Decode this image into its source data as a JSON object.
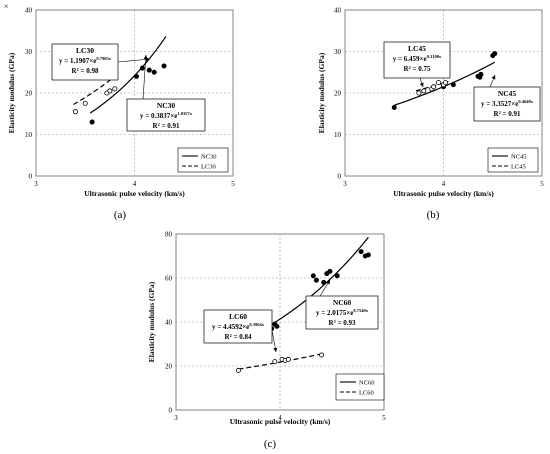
{
  "corner_mark": "×",
  "chart_data": [
    {
      "type": "scatter",
      "panel_label": "(a)",
      "xlabel": "Ultrasonic pulse velocity (km/s)",
      "ylabel": "Elasticity modulus (GPa)",
      "xlim": [
        3,
        5
      ],
      "ylim": [
        0,
        40
      ],
      "xticks": [
        3,
        4,
        5
      ],
      "yticks": [
        0,
        10,
        20,
        30,
        40
      ],
      "grid": "dashed",
      "legend_position": "bottom-right",
      "series": [
        {
          "name": "NC30",
          "marker": "filled-circle",
          "line": "solid",
          "points": [
            [
              3.57,
              13.0
            ],
            [
              4.02,
              24.0
            ],
            [
              4.08,
              26.0
            ],
            [
              4.15,
              25.5
            ],
            [
              4.2,
              25.0
            ],
            [
              4.3,
              26.5
            ]
          ],
          "fit": {
            "a": 0.3837,
            "b": 1.0357,
            "x_range": [
              3.55,
              4.32
            ]
          },
          "annotation": {
            "equation": "y = 0.3837×e",
            "exponent": "1.0357x",
            "r2": "R² = 0.91",
            "title": "NC30"
          }
        },
        {
          "name": "LC30",
          "marker": "open-circle",
          "line": "dashed",
          "points": [
            [
              3.4,
              15.5
            ],
            [
              3.5,
              17.5
            ],
            [
              3.72,
              20.0
            ],
            [
              3.75,
              20.5
            ],
            [
              3.8,
              21.0
            ]
          ],
          "fit": {
            "a": 1.1907,
            "b": 0.7905,
            "x_range": [
              3.38,
              3.82
            ]
          },
          "annotation": {
            "title": "LC30",
            "equation": "y = 1.1907×e",
            "exponent": "0.7905x",
            "r2": "R² = 0.98"
          }
        }
      ]
    },
    {
      "type": "scatter",
      "panel_label": "(b)",
      "xlabel": "Ultrasonic pulse velocity (km/s)",
      "ylabel": "Elasticity modulus (GPa)",
      "xlim": [
        3,
        5
      ],
      "ylim": [
        0,
        40
      ],
      "xticks": [
        3,
        4,
        5
      ],
      "yticks": [
        0,
        10,
        20,
        30,
        40
      ],
      "grid": "dashed",
      "legend_position": "bottom-right",
      "series": [
        {
          "name": "NC45",
          "marker": "filled-circle",
          "line": "solid",
          "points": [
            [
              3.5,
              16.5
            ],
            [
              4.0,
              21.5
            ],
            [
              4.1,
              22.0
            ],
            [
              4.35,
              24.0
            ],
            [
              4.37,
              23.8
            ],
            [
              4.38,
              24.5
            ],
            [
              4.5,
              29.0
            ],
            [
              4.52,
              29.5
            ]
          ],
          "fit": {
            "a": 3.3527,
            "b": 0.4648,
            "x_range": [
              3.5,
              4.52
            ]
          },
          "annotation": {
            "title": "NC45",
            "equation": "y = 3.3527×e",
            "exponent": "0.4648x",
            "r2": "R² = 0.91"
          }
        },
        {
          "name": "LC45",
          "marker": "open-circle",
          "line": "dashed",
          "points": [
            [
              3.75,
              20.0
            ],
            [
              3.8,
              20.5
            ],
            [
              3.88,
              21.0
            ],
            [
              3.9,
              21.5
            ],
            [
              3.95,
              22.5
            ],
            [
              4.0,
              22.0
            ],
            [
              4.02,
              22.5
            ]
          ],
          "fit": {
            "a": 6.459,
            "b": 0.3108,
            "x_range": [
              3.72,
              4.05
            ]
          },
          "annotation": {
            "title": "LC45",
            "equation": "y = 6.459×e",
            "exponent": "0.3108x",
            "r2": "R² = 0.75"
          }
        }
      ]
    },
    {
      "type": "scatter",
      "panel_label": "(c)",
      "xlabel": "Ultrasonic pulse velocity (km/s)",
      "ylabel": "Elasticity modulus (GPa)",
      "xlim": [
        3,
        5
      ],
      "ylim": [
        0,
        80
      ],
      "xticks": [
        3,
        4,
        5
      ],
      "yticks": [
        0,
        20,
        40,
        60,
        80
      ],
      "grid": "dashed",
      "legend_position": "bottom-right",
      "series": [
        {
          "name": "NC60",
          "marker": "filled-circle",
          "line": "solid",
          "points": [
            [
              3.92,
              37.0
            ],
            [
              3.95,
              39.0
            ],
            [
              3.97,
              38.0
            ],
            [
              4.32,
              61.0
            ],
            [
              4.35,
              59.0
            ],
            [
              4.42,
              58.0
            ],
            [
              4.45,
              62.0
            ],
            [
              4.48,
              63.0
            ],
            [
              4.55,
              61.0
            ],
            [
              4.78,
              72.0
            ],
            [
              4.82,
              70.0
            ],
            [
              4.85,
              70.5
            ]
          ],
          "fit": {
            "a": 2.0175,
            "b": 0.7549,
            "x_range": [
              3.92,
              4.85
            ]
          },
          "annotation": {
            "title": "NC60",
            "equation": "y = 2.0175×e",
            "exponent": "0.7549x",
            "r2": "R² = 0.93"
          }
        },
        {
          "name": "LC60",
          "marker": "open-circle",
          "line": "dashed",
          "points": [
            [
              3.6,
              18.0
            ],
            [
              3.95,
              22.0
            ],
            [
              4.02,
              23.0
            ],
            [
              4.05,
              22.5
            ],
            [
              4.08,
              23.0
            ],
            [
              4.4,
              25.0
            ]
          ],
          "fit": {
            "a": 4.4592,
            "b": 0.3964,
            "x_range": [
              3.6,
              4.42
            ]
          },
          "annotation": {
            "title": "LC60",
            "equation": "y = 4.4592×e",
            "exponent": "0.3964x",
            "r2": "R² = 0.84"
          }
        }
      ]
    }
  ]
}
